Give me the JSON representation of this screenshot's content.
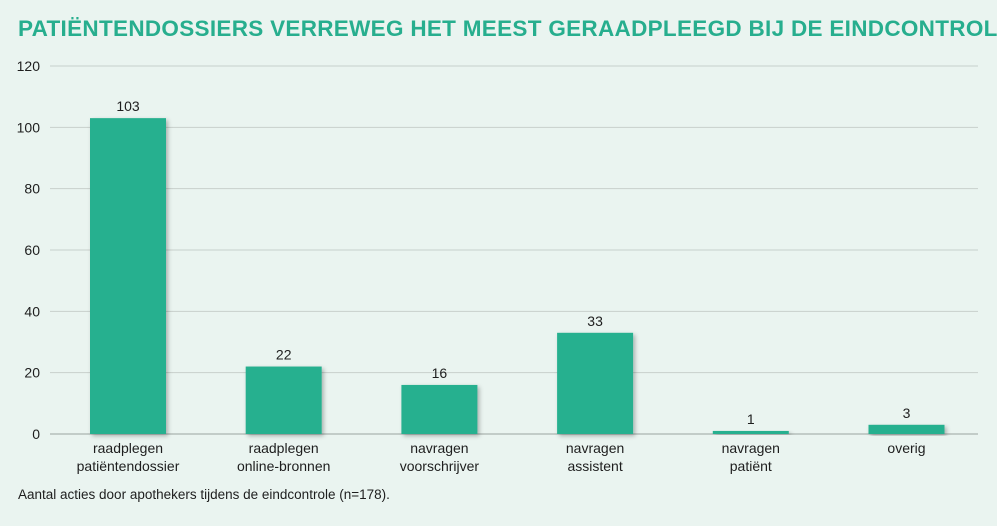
{
  "colors": {
    "title": "#27ae8e",
    "bar": "#28b08f",
    "grid": "#c7cfcb",
    "text": "#1e1e1e"
  },
  "caption": "Aantal acties door apothekers tijdens de eindcontrole (n=178).",
  "chart_data": {
    "type": "bar",
    "title": "PATIËNTENDOSSIERS VERREWEG HET MEEST GERAADPLEEGD BIJ DE EINDCONTROLE",
    "xlabel": "",
    "ylabel": "",
    "ylim": [
      0,
      120
    ],
    "yticks": [
      0,
      20,
      40,
      60,
      80,
      100,
      120
    ],
    "grid": true,
    "categories": [
      [
        "raadplegen",
        "patiëntendossier"
      ],
      [
        "raadplegen",
        "online-bronnen"
      ],
      [
        "navragen",
        "voorschrijver"
      ],
      [
        "navragen",
        "assistent"
      ],
      [
        "navragen",
        "patiënt"
      ],
      [
        "overig"
      ]
    ],
    "values": [
      103,
      22,
      16,
      33,
      1,
      3
    ],
    "data_labels": [
      "103",
      "22",
      "16",
      "33",
      "1",
      "3"
    ]
  }
}
